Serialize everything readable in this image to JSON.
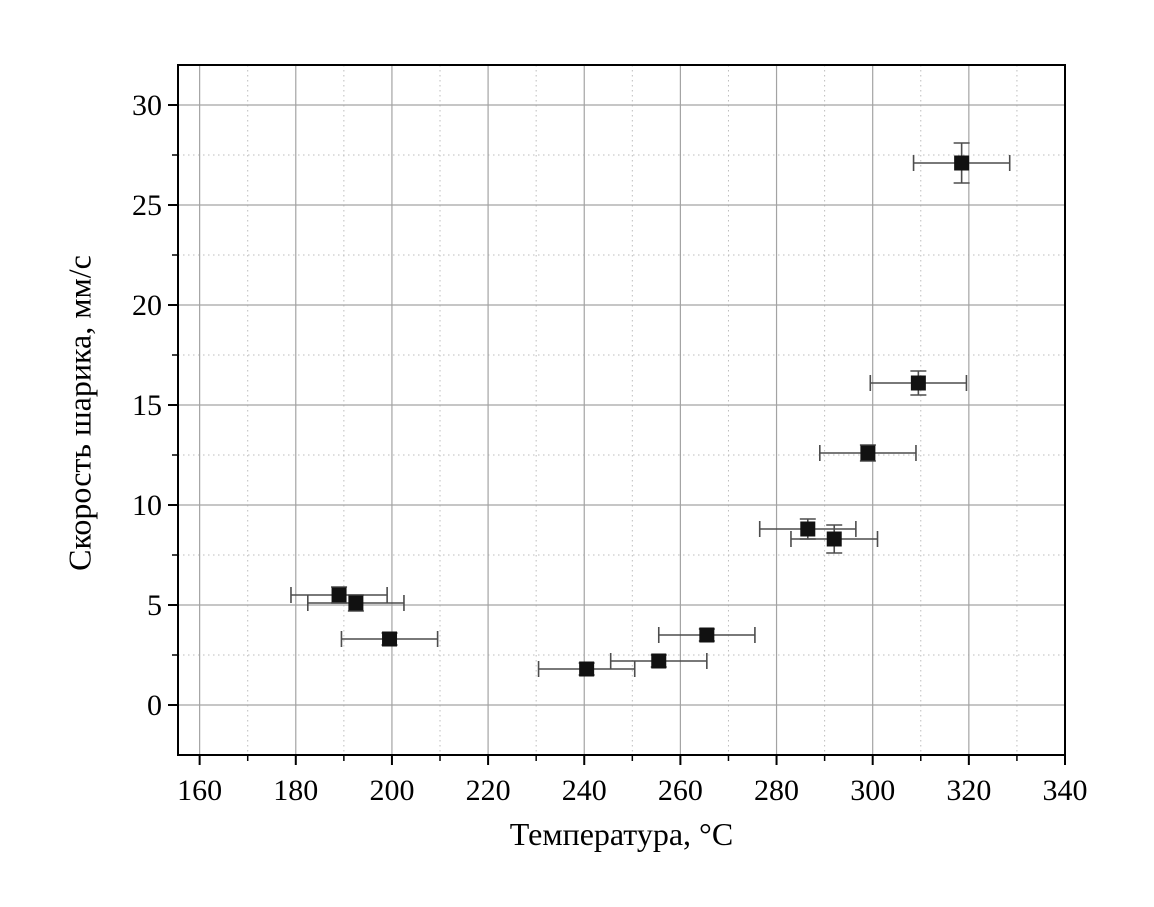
{
  "chart_data": {
    "type": "scatter",
    "title": "",
    "xlabel": "Температура, °C",
    "ylabel": "Скорость шарика, мм/с",
    "x_axis": {
      "min": 155.5,
      "max": 340,
      "major_ticks": [
        160,
        180,
        200,
        220,
        240,
        260,
        280,
        300,
        320,
        340
      ],
      "minor_step": 10
    },
    "y_axis": {
      "min": -2.5,
      "max": 32,
      "major_ticks": [
        0,
        5,
        10,
        15,
        20,
        25,
        30
      ],
      "minor_step": 2.5
    },
    "grid": {
      "major": true,
      "minor": true,
      "minor_style": "dotted"
    },
    "legend": null,
    "series": [
      {
        "name": "Скорость шарика",
        "marker": "square",
        "points": [
          {
            "x": 189.0,
            "y": 5.5,
            "xerr": 10,
            "yerr": 0.4
          },
          {
            "x": 192.5,
            "y": 5.1,
            "xerr": 10,
            "yerr": 0.4
          },
          {
            "x": 199.5,
            "y": 3.3,
            "xerr": 10,
            "yerr": 0.3
          },
          {
            "x": 240.5,
            "y": 1.8,
            "xerr": 10,
            "yerr": 0.3
          },
          {
            "x": 255.5,
            "y": 2.2,
            "xerr": 10,
            "yerr": 0.3
          },
          {
            "x": 265.5,
            "y": 3.5,
            "xerr": 10,
            "yerr": 0.3
          },
          {
            "x": 286.5,
            "y": 8.8,
            "xerr": 10,
            "yerr": 0.5
          },
          {
            "x": 292.0,
            "y": 8.3,
            "xerr": 9,
            "yerr": 0.7
          },
          {
            "x": 299.0,
            "y": 12.6,
            "xerr": 10,
            "yerr": 0.4
          },
          {
            "x": 309.5,
            "y": 16.1,
            "xerr": 10,
            "yerr": 0.6
          },
          {
            "x": 318.5,
            "y": 27.1,
            "xerr": 10,
            "yerr": 1.0
          }
        ]
      }
    ],
    "colors": {
      "marker": "#111111",
      "error_bar": "#4d4d4d",
      "major_grid": "#a3a3a3",
      "minor_grid": "#bdbdbd",
      "axis": "#000000",
      "background": "#ffffff"
    }
  }
}
